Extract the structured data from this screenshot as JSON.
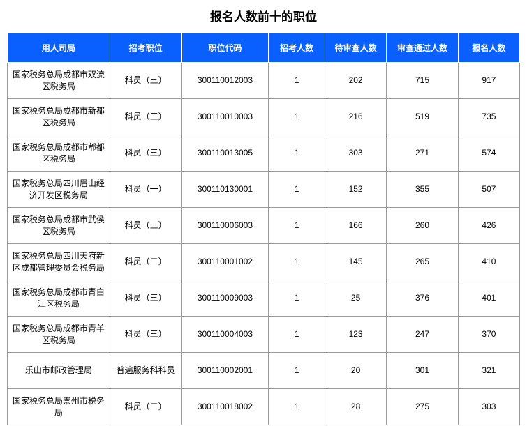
{
  "table": {
    "title": "报名人数前十的职位",
    "header_bg": "#0a5fff",
    "header_fg": "#ffffff",
    "border_color": "#999999",
    "columns": [
      "用人司局",
      "招考职位",
      "职位代码",
      "招考人数",
      "待审查人数",
      "审查通过人数",
      "报名人数"
    ],
    "rows": [
      [
        "国家税务总局成都市双流区税务局",
        "科员（三）",
        "300110012003",
        "1",
        "202",
        "715",
        "917"
      ],
      [
        "国家税务总局成都市新都区税务局",
        "科员（三）",
        "300110010003",
        "1",
        "216",
        "519",
        "735"
      ],
      [
        "国家税务总局成都市郫都区税务局",
        "科员（三）",
        "300110013005",
        "1",
        "303",
        "271",
        "574"
      ],
      [
        "国家税务总局四川眉山经济开发区税务局",
        "科员（一）",
        "300110130001",
        "1",
        "152",
        "355",
        "507"
      ],
      [
        "国家税务总局成都市武侯区税务局",
        "科员（三）",
        "300110006003",
        "1",
        "166",
        "260",
        "426"
      ],
      [
        "国家税务总局四川天府新区成都管理委员会税务局",
        "科员（二）",
        "300110001002",
        "1",
        "145",
        "265",
        "410"
      ],
      [
        "国家税务总局成都市青白江区税务局",
        "科员（三）",
        "300110009003",
        "1",
        "25",
        "376",
        "401"
      ],
      [
        "国家税务总局成都市青羊区税务局",
        "科员（三）",
        "300110004003",
        "1",
        "123",
        "247",
        "370"
      ],
      [
        "乐山市邮政管理局",
        "普遍服务科科员",
        "300110002001",
        "1",
        "20",
        "301",
        "321"
      ],
      [
        "国家税务总局崇州市税务局",
        "科员（二）",
        "300110018002",
        "1",
        "28",
        "275",
        "303"
      ]
    ]
  }
}
